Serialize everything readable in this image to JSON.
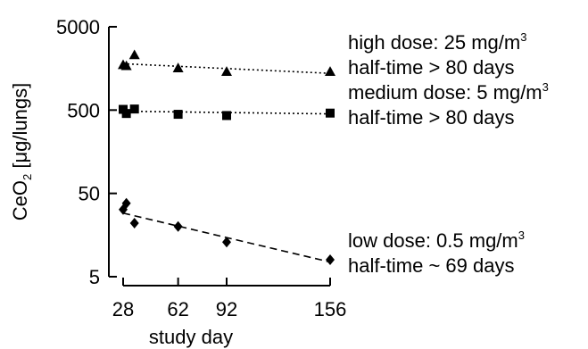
{
  "chart_data": {
    "type": "scatter",
    "title": "",
    "xlabel": "study day",
    "ylabel": {
      "base": "CeO",
      "sub": "2",
      "rest": " [μg/lungs]"
    },
    "x_ticks": [
      28,
      62,
      92,
      156
    ],
    "y_ticks": [
      {
        "value": 5,
        "label": "5"
      },
      {
        "value": 50,
        "label": "50"
      },
      {
        "value": 500,
        "label": "500"
      },
      {
        "value": 5000,
        "label": "5000"
      }
    ],
    "ylim": [
      5,
      5000
    ],
    "y_scale": "log",
    "xlim": [
      28,
      156
    ],
    "grid": false,
    "series": [
      {
        "marker": "triangle",
        "line_style": "dotted",
        "points": [
          [
            28,
            1750
          ],
          [
            30,
            1700
          ],
          [
            35,
            2300
          ],
          [
            62,
            1600
          ],
          [
            92,
            1450
          ],
          [
            156,
            1450
          ]
        ],
        "fit": [
          [
            28,
            1800
          ],
          [
            156,
            1380
          ]
        ],
        "annotation": {
          "line1": {
            "text": "high dose: 25 mg/m",
            "sup": "3"
          },
          "line2": "half-time > 80 days"
        }
      },
      {
        "marker": "square",
        "line_style": "dotted",
        "points": [
          [
            28,
            510
          ],
          [
            30,
            455
          ],
          [
            35,
            515
          ],
          [
            62,
            445
          ],
          [
            92,
            430
          ],
          [
            156,
            460
          ]
        ],
        "fit": [
          [
            28,
            485
          ],
          [
            156,
            450
          ]
        ],
        "annotation": {
          "line1": {
            "text": "medium dose: 5 mg/m",
            "sup": "3"
          },
          "line2": "half-time > 80 days"
        }
      },
      {
        "marker": "diamond",
        "line_style": "dashed",
        "points": [
          [
            28,
            32
          ],
          [
            30,
            38
          ],
          [
            35,
            22
          ],
          [
            62,
            20
          ],
          [
            92,
            13
          ],
          [
            156,
            8
          ]
        ],
        "fit": [
          [
            28,
            29
          ],
          [
            156,
            7.5
          ]
        ],
        "annotation": {
          "line1": {
            "text": "low dose: 0.5 mg/m",
            "sup": "3"
          },
          "line2": "half-time ~ 69 days"
        }
      }
    ]
  }
}
